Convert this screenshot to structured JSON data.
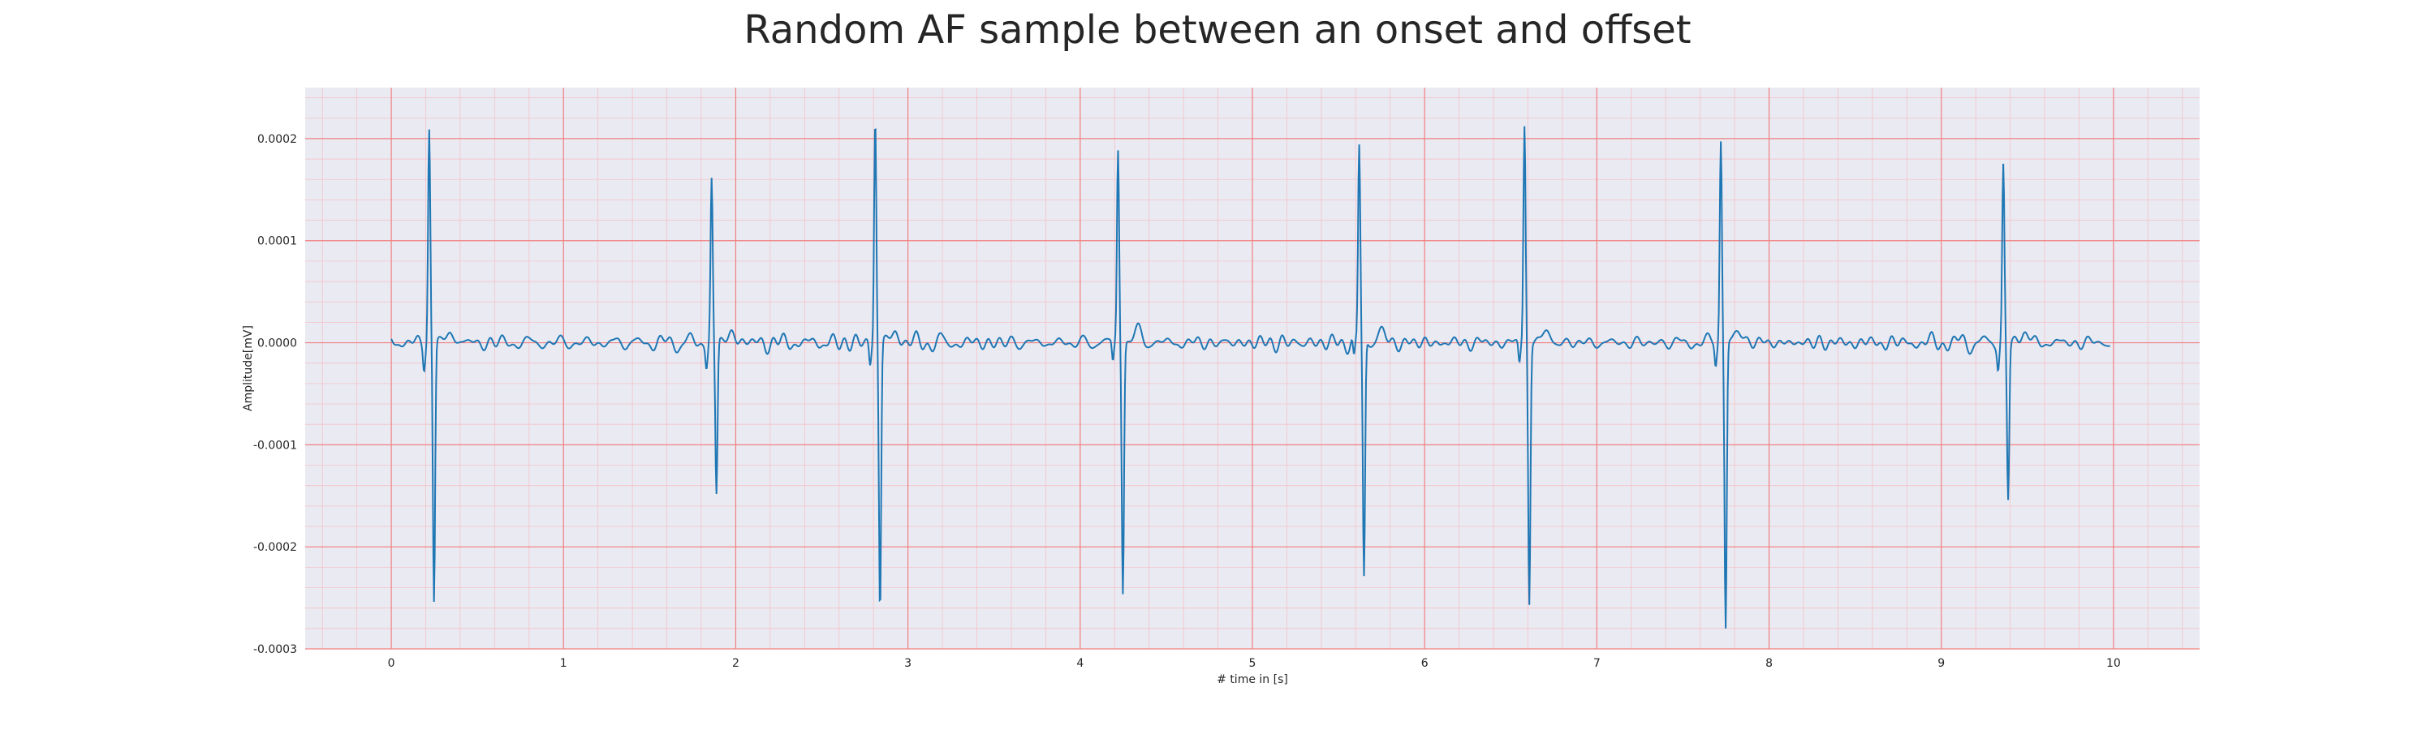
{
  "chart_data": {
    "type": "line",
    "title": "Random AF sample between an onset and offset",
    "xlabel": "# time in [s]",
    "ylabel": "Amplitude[mV]",
    "xlim": [
      -0.5,
      10.5
    ],
    "ylim": [
      -0.0003,
      0.00025
    ],
    "xticks": [
      0,
      1,
      2,
      3,
      4,
      5,
      6,
      7,
      8,
      9,
      10
    ],
    "xtick_labels": [
      "0",
      "1",
      "2",
      "3",
      "4",
      "5",
      "6",
      "7",
      "8",
      "9",
      "10"
    ],
    "yticks": [
      -0.0003,
      -0.0002,
      -0.0001,
      0.0,
      0.0001,
      0.0002
    ],
    "ytick_labels": [
      "-0.0003",
      "-0.0002",
      "-0.0001",
      "0.0000",
      "0.0001",
      "0.0002"
    ],
    "grid": true,
    "minor_grid": true,
    "colors": {
      "line": "#1f77b4",
      "plot_background": "#eaeaf2",
      "major_grid": "#f08080",
      "minor_grid": "#f4c2c8"
    },
    "series": [
      {
        "x_start": 0.0,
        "x_end": 9.98,
        "qrs_peaks": [
          {
            "t": 0.22,
            "peak": 0.00021,
            "trough": -0.000255
          },
          {
            "t": 1.86,
            "peak": 0.00016,
            "trough": -0.00015
          },
          {
            "t": 2.81,
            "peak": 0.000223,
            "trough": -0.000263
          },
          {
            "t": 4.22,
            "peak": 0.000192,
            "trough": -0.000241
          },
          {
            "t": 5.62,
            "peak": 0.000195,
            "trough": -0.000233
          },
          {
            "t": 6.58,
            "peak": 0.000214,
            "trough": -0.000254
          },
          {
            "t": 7.72,
            "peak": 0.000203,
            "trough": -0.000278
          },
          {
            "t": 9.36,
            "peak": 0.00017,
            "trough": -0.000153
          }
        ],
        "baseline_noise_amplitude": 1.2e-05
      }
    ]
  }
}
